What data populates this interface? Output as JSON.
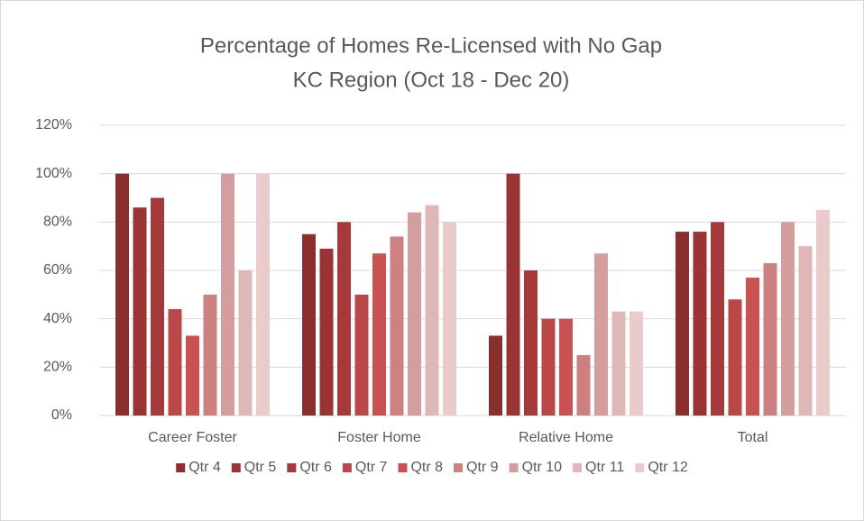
{
  "chart_data": {
    "type": "bar",
    "title": "Percentage of Homes Re-Licensed with No Gap",
    "subtitle": "KC Region (Oct 18 - Dec 20)",
    "categories": [
      "Career Foster",
      "Foster Home",
      "Relative Home",
      "Total"
    ],
    "series": [
      {
        "name": "Qtr 4",
        "color": "#8b2e2e",
        "values": [
          100,
          75,
          33,
          76
        ]
      },
      {
        "name": "Qtr 5",
        "color": "#9a3434",
        "values": [
          86,
          69,
          100,
          76
        ]
      },
      {
        "name": "Qtr 6",
        "color": "#a63a3a",
        "values": [
          90,
          80,
          60,
          80
        ]
      },
      {
        "name": "Qtr 7",
        "color": "#bb4848",
        "values": [
          44,
          50,
          40,
          48
        ]
      },
      {
        "name": "Qtr 8",
        "color": "#c85252",
        "values": [
          33,
          67,
          40,
          57
        ]
      },
      {
        "name": "Qtr 9",
        "color": "#cd8080",
        "values": [
          50,
          74,
          25,
          63
        ]
      },
      {
        "name": "Qtr 10",
        "color": "#d59e9e",
        "values": [
          100,
          84,
          67,
          80
        ]
      },
      {
        "name": "Qtr 11",
        "color": "#e0b7b7",
        "values": [
          60,
          87,
          43,
          70
        ]
      },
      {
        "name": "Qtr 12",
        "color": "#eacaca",
        "values": [
          100,
          80,
          43,
          85
        ]
      }
    ],
    "ylim": [
      0,
      120
    ],
    "yticks": [
      {
        "value": 0,
        "label": "0%"
      },
      {
        "value": 20,
        "label": "20%"
      },
      {
        "value": 40,
        "label": "40%"
      },
      {
        "value": 60,
        "label": "60%"
      },
      {
        "value": 80,
        "label": "80%"
      },
      {
        "value": 100,
        "label": "100%"
      },
      {
        "value": 120,
        "label": "120%"
      }
    ],
    "grid": true,
    "legend": "bottom"
  }
}
